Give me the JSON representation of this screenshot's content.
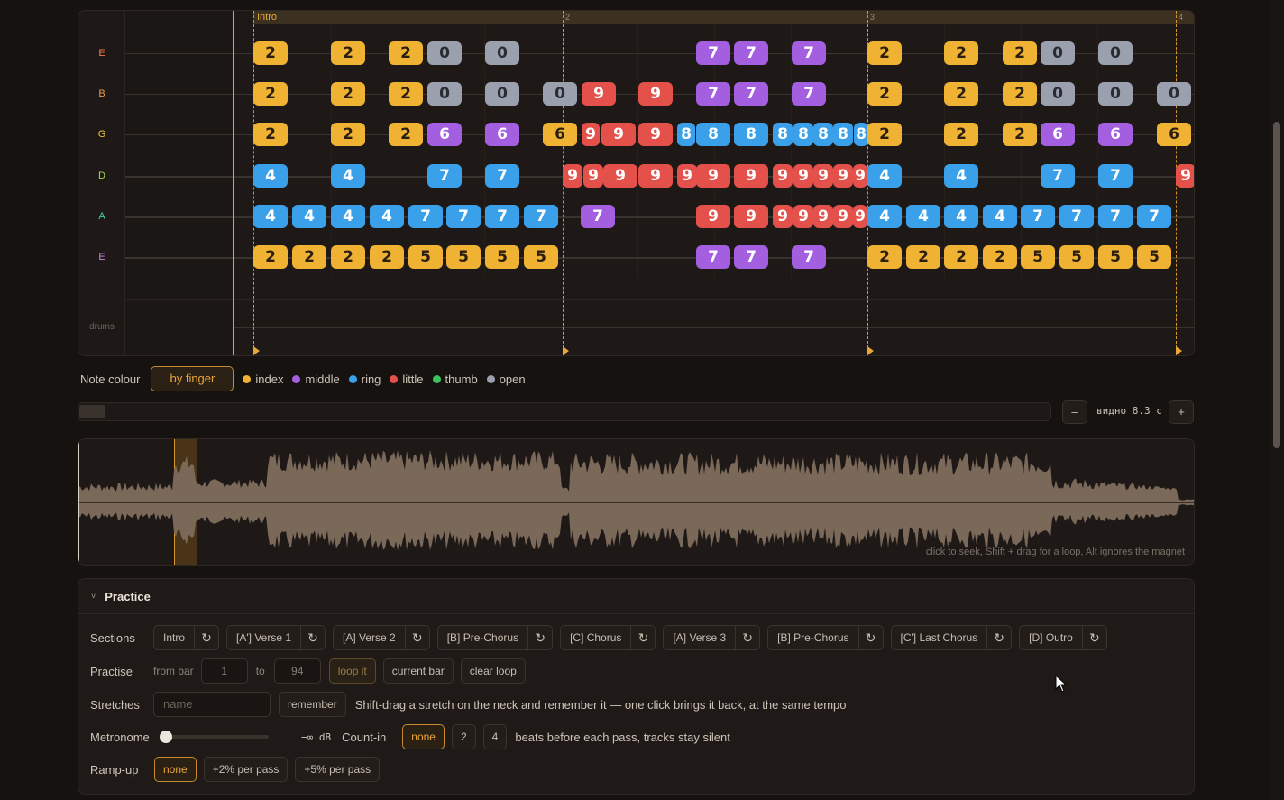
{
  "tab": {
    "string_labels": [
      "E",
      "B",
      "G",
      "D",
      "A",
      "E"
    ],
    "string_label_colors": [
      "#f07c4a",
      "#f09a4a",
      "#f0c24a",
      "#a6d84a",
      "#4ad0a8",
      "#c887e8"
    ],
    "drums_label": "drums",
    "section_title": "Intro",
    "bar_numbers": [
      "2",
      "3",
      "4"
    ],
    "notes": [
      [
        "2",
        "index"
      ],
      [
        "2",
        "index"
      ],
      [
        "2",
        "index"
      ],
      [
        "0",
        "open"
      ],
      [
        "0",
        "open"
      ],
      [
        "7",
        "middle"
      ],
      [
        "7",
        "middle"
      ],
      [
        "7",
        "middle"
      ],
      [
        "2",
        "index"
      ],
      [
        "2",
        "index"
      ],
      [
        "2",
        "index"
      ],
      [
        "0",
        "open"
      ],
      [
        "0",
        "open"
      ],
      [
        "2",
        "index"
      ],
      [
        "2",
        "index"
      ],
      [
        "2",
        "index"
      ],
      [
        "0",
        "open"
      ],
      [
        "0",
        "open"
      ],
      [
        "0",
        "open"
      ],
      [
        "9",
        "little"
      ],
      [
        "9",
        "little"
      ],
      [
        "7",
        "middle"
      ],
      [
        "7",
        "middle"
      ],
      [
        "7",
        "middle"
      ],
      [
        "2",
        "index"
      ],
      [
        "2",
        "index"
      ],
      [
        "2",
        "index"
      ],
      [
        "0",
        "open"
      ],
      [
        "0",
        "open"
      ],
      [
        "0",
        "open"
      ],
      [
        "2",
        "index"
      ],
      [
        "2",
        "index"
      ],
      [
        "2",
        "index"
      ],
      [
        "6",
        "middle"
      ],
      [
        "6",
        "middle"
      ],
      [
        "6",
        "index"
      ],
      [
        "9",
        "little"
      ],
      [
        "9",
        "little"
      ],
      [
        "9",
        "little"
      ],
      [
        "8",
        "ring"
      ],
      [
        "8",
        "ring"
      ],
      [
        "8",
        "ring"
      ],
      [
        "8",
        "ring"
      ],
      [
        "8",
        "ring"
      ],
      [
        "8",
        "ring"
      ],
      [
        "8",
        "ring"
      ],
      [
        "8",
        "ring"
      ],
      [
        "2",
        "index"
      ],
      [
        "2",
        "index"
      ],
      [
        "2",
        "index"
      ],
      [
        "6",
        "middle"
      ],
      [
        "6",
        "middle"
      ],
      [
        "6",
        "index"
      ],
      [
        "4",
        "ring"
      ],
      [
        "4",
        "ring"
      ],
      [
        "7",
        "ring"
      ],
      [
        "7",
        "ring"
      ],
      [
        "9",
        "little"
      ],
      [
        "9",
        "little"
      ],
      [
        "9",
        "little"
      ],
      [
        "9",
        "little"
      ],
      [
        "9",
        "little"
      ],
      [
        "9",
        "little"
      ],
      [
        "9",
        "little"
      ],
      [
        "9",
        "little"
      ],
      [
        "9",
        "little"
      ],
      [
        "9",
        "little"
      ],
      [
        "9",
        "little"
      ],
      [
        "9",
        "little"
      ],
      [
        "4",
        "ring"
      ],
      [
        "4",
        "ring"
      ],
      [
        "7",
        "ring"
      ],
      [
        "7",
        "ring"
      ],
      [
        "9",
        "little"
      ],
      [
        "4",
        "ring"
      ],
      [
        "4",
        "ring"
      ],
      [
        "4",
        "ring"
      ],
      [
        "4",
        "ring"
      ],
      [
        "7",
        "ring"
      ],
      [
        "7",
        "ring"
      ],
      [
        "7",
        "ring"
      ],
      [
        "7",
        "ring"
      ],
      [
        "7",
        "middle"
      ],
      [
        "9",
        "little"
      ],
      [
        "9",
        "little"
      ],
      [
        "9",
        "little"
      ],
      [
        "9",
        "little"
      ],
      [
        "9",
        "little"
      ],
      [
        "9",
        "little"
      ],
      [
        "9",
        "little"
      ],
      [
        "4",
        "ring"
      ],
      [
        "4",
        "ring"
      ],
      [
        "4",
        "ring"
      ],
      [
        "4",
        "ring"
      ],
      [
        "7",
        "ring"
      ],
      [
        "7",
        "ring"
      ],
      [
        "7",
        "ring"
      ],
      [
        "7",
        "ring"
      ],
      [
        "2",
        "index"
      ],
      [
        "2",
        "index"
      ],
      [
        "2",
        "index"
      ],
      [
        "2",
        "index"
      ],
      [
        "5",
        "index"
      ],
      [
        "5",
        "index"
      ],
      [
        "5",
        "index"
      ],
      [
        "5",
        "index"
      ],
      [
        "7",
        "middle"
      ],
      [
        "7",
        "middle"
      ],
      [
        "7",
        "middle"
      ],
      [
        "2",
        "index"
      ],
      [
        "2",
        "index"
      ],
      [
        "2",
        "index"
      ],
      [
        "2",
        "index"
      ],
      [
        "5",
        "index"
      ],
      [
        "5",
        "index"
      ],
      [
        "5",
        "index"
      ],
      [
        "5",
        "index"
      ]
    ]
  },
  "finger_colors": {
    "index": "#f0b232",
    "middle": "#a45ee0",
    "ring": "#3aa0ea",
    "little": "#e4504a",
    "thumb": "#3cc25a",
    "open": "#9aa0ae"
  },
  "note_colour": {
    "label": "Note colour",
    "mode_button": "by finger",
    "legend": [
      "index",
      "middle",
      "ring",
      "little",
      "thumb",
      "open"
    ]
  },
  "zoom": {
    "minus": "–",
    "plus": "+",
    "visible_label": "видно 8.3 с"
  },
  "waveform": {
    "hint": "click to seek, Shift + drag for a loop, Alt ignores the magnet"
  },
  "practice": {
    "title": "Practice",
    "sections_label": "Sections",
    "sections": [
      "Intro",
      "[A'] Verse 1",
      "[A] Verse 2",
      "[B] Pre-Chorus",
      "[C] Chorus",
      "[A] Verse 3",
      "[B] Pre-Chorus",
      "[C'] Last Chorus",
      "[D] Outro"
    ],
    "loop_icon": "↻",
    "practise_label": "Practise",
    "from_bar_label": "from bar",
    "from_value": "1",
    "to_label": "to",
    "to_value": "94",
    "loop_it": "loop it",
    "current_bar": "current bar",
    "clear_loop": "clear loop",
    "stretches_label": "Stretches",
    "name_placeholder": "name",
    "remember": "remember",
    "stretches_hint": "Shift-drag a stretch on the neck and remember it — one click brings it back, at the same tempo",
    "metronome_label": "Metronome",
    "metronome_level": 0,
    "metronome_db": "−∞ dB",
    "count_in_label": "Count-in",
    "count_in_options": [
      "none",
      "2",
      "4"
    ],
    "count_in_hint": "beats before each pass, tracks stay silent",
    "rampup_label": "Ramp-up",
    "rampup_options": [
      "none",
      "+2% per pass",
      "+5% per pass"
    ]
  }
}
